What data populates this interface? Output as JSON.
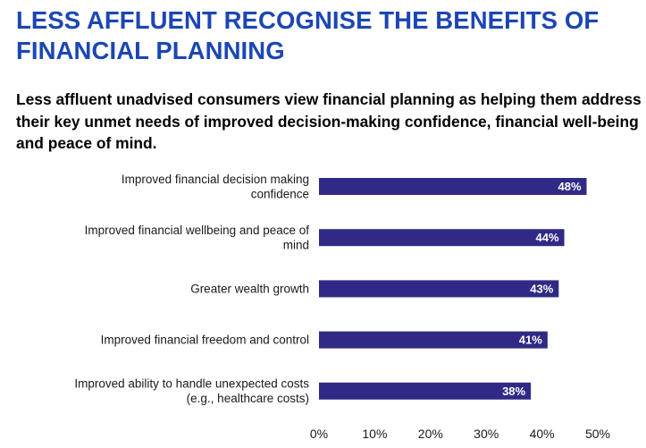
{
  "page": {
    "title": "LESS AFFLUENT RECOGNISE THE BENEFITS OF FINANCIAL PLANNING",
    "subtitle": "Less affluent unadvised consumers view financial planning as helping them address their key unmet needs of improved decision-making confidence, financial well-being and peace of mind."
  },
  "colors": {
    "title": "#1c46b4",
    "bar": "#302a86",
    "value_label": "#ffffff"
  },
  "chart_data": {
    "type": "bar",
    "orientation": "horizontal",
    "categories": [
      [
        "Improved financial decision making",
        "confidence"
      ],
      [
        "Improved financial wellbeing and peace of",
        "mind"
      ],
      [
        "Greater wealth growth"
      ],
      [
        "Improved financial freedom and control"
      ],
      [
        "Improved ability to handle unexpected costs",
        "(e.g.,  healthcare costs)"
      ]
    ],
    "values": [
      48,
      44,
      43,
      41,
      38
    ],
    "value_labels": [
      "48%",
      "44%",
      "43%",
      "41%",
      "38%"
    ],
    "xlim": [
      0,
      50
    ],
    "ticks": [
      0,
      10,
      20,
      30,
      40,
      50
    ],
    "tick_labels": [
      "0%",
      "10%",
      "20%",
      "30%",
      "40%",
      "50%"
    ],
    "grid": false,
    "legend": "none"
  }
}
